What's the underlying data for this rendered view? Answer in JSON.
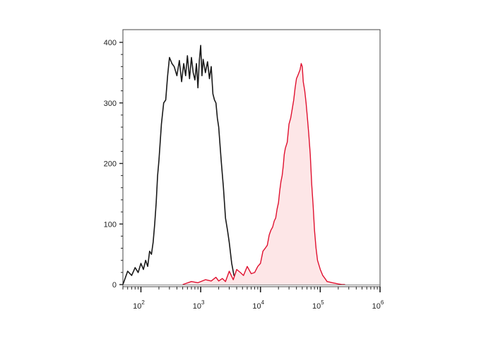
{
  "chart_data": {
    "type": "area",
    "title": "",
    "xlabel": "",
    "ylabel": "",
    "x_scale": "log",
    "xlim": [
      50,
      1000000
    ],
    "ylim": [
      0,
      420
    ],
    "x_ticks": [
      {
        "base": "10",
        "exp": "2",
        "value": 100
      },
      {
        "base": "10",
        "exp": "3",
        "value": 1000
      },
      {
        "base": "10",
        "exp": "4",
        "value": 10000
      },
      {
        "base": "10",
        "exp": "5",
        "value": 100000
      },
      {
        "base": "10",
        "exp": "6",
        "value": 1000000
      }
    ],
    "y_ticks": [
      {
        "label": "0",
        "value": 0
      },
      {
        "label": "100",
        "value": 100
      },
      {
        "label": "200",
        "value": 200
      },
      {
        "label": "300",
        "value": 300
      },
      {
        "label": "400",
        "value": 400
      }
    ],
    "grid": false,
    "legend": "none",
    "series": [
      {
        "style": "line",
        "color": "#1a1a1a",
        "fill": "none",
        "x": [
          50,
          60,
          70,
          80,
          90,
          100,
          110,
          120,
          130,
          140,
          150,
          160,
          170,
          180,
          190,
          200,
          220,
          240,
          260,
          280,
          300,
          330,
          360,
          400,
          440,
          480,
          520,
          560,
          600,
          650,
          700,
          750,
          800,
          850,
          900,
          950,
          1000,
          1050,
          1100,
          1200,
          1300,
          1400,
          1500,
          1600,
          1700,
          1800,
          1900,
          2000,
          2200,
          2400,
          2600,
          2800,
          3000,
          3300,
          3600,
          4000,
          4500,
          5000,
          6000,
          7000,
          8000,
          10000,
          12000,
          15000
        ],
        "y": [
          0,
          22,
          15,
          28,
          20,
          35,
          25,
          40,
          30,
          55,
          50,
          70,
          100,
          135,
          180,
          205,
          265,
          300,
          305,
          345,
          375,
          365,
          360,
          345,
          370,
          335,
          365,
          345,
          378,
          340,
          375,
          350,
          338,
          365,
          325,
          370,
          395,
          345,
          372,
          350,
          368,
          340,
          360,
          315,
          305,
          300,
          275,
          260,
          205,
          160,
          110,
          90,
          70,
          35,
          15,
          12,
          8,
          5,
          3,
          2,
          2,
          1,
          0,
          0
        ]
      },
      {
        "style": "filled",
        "color": "#e0102f",
        "fill": "#fde6e7",
        "x": [
          500,
          700,
          900,
          1200,
          1500,
          1800,
          2000,
          2300,
          2600,
          3000,
          3500,
          4000,
          4600,
          5200,
          6000,
          7000,
          8000,
          9000,
          10000,
          11000,
          12000,
          13000,
          14000,
          15000,
          16000,
          17000,
          18000,
          19000,
          20000,
          21000,
          22000,
          23000,
          24000,
          25000,
          26000,
          28000,
          30000,
          32000,
          34000,
          36000,
          38000,
          40000,
          42000,
          44000,
          46000,
          48000,
          50000,
          52000,
          55000,
          58000,
          61000,
          64000,
          68000,
          72000,
          76000,
          80000,
          85000,
          90000,
          100000,
          110000,
          120000,
          130000,
          145000,
          160000,
          180000,
          200000,
          230000,
          260000
        ],
        "y": [
          0,
          5,
          3,
          8,
          6,
          12,
          6,
          10,
          5,
          22,
          8,
          25,
          20,
          15,
          30,
          18,
          20,
          30,
          35,
          55,
          60,
          65,
          82,
          90,
          95,
          105,
          110,
          125,
          135,
          155,
          170,
          180,
          195,
          215,
          225,
          235,
          265,
          275,
          290,
          305,
          325,
          340,
          345,
          350,
          355,
          365,
          360,
          335,
          320,
          300,
          275,
          250,
          215,
          165,
          130,
          90,
          60,
          40,
          25,
          15,
          10,
          5,
          4,
          3,
          2,
          1,
          0,
          0
        ]
      }
    ]
  }
}
